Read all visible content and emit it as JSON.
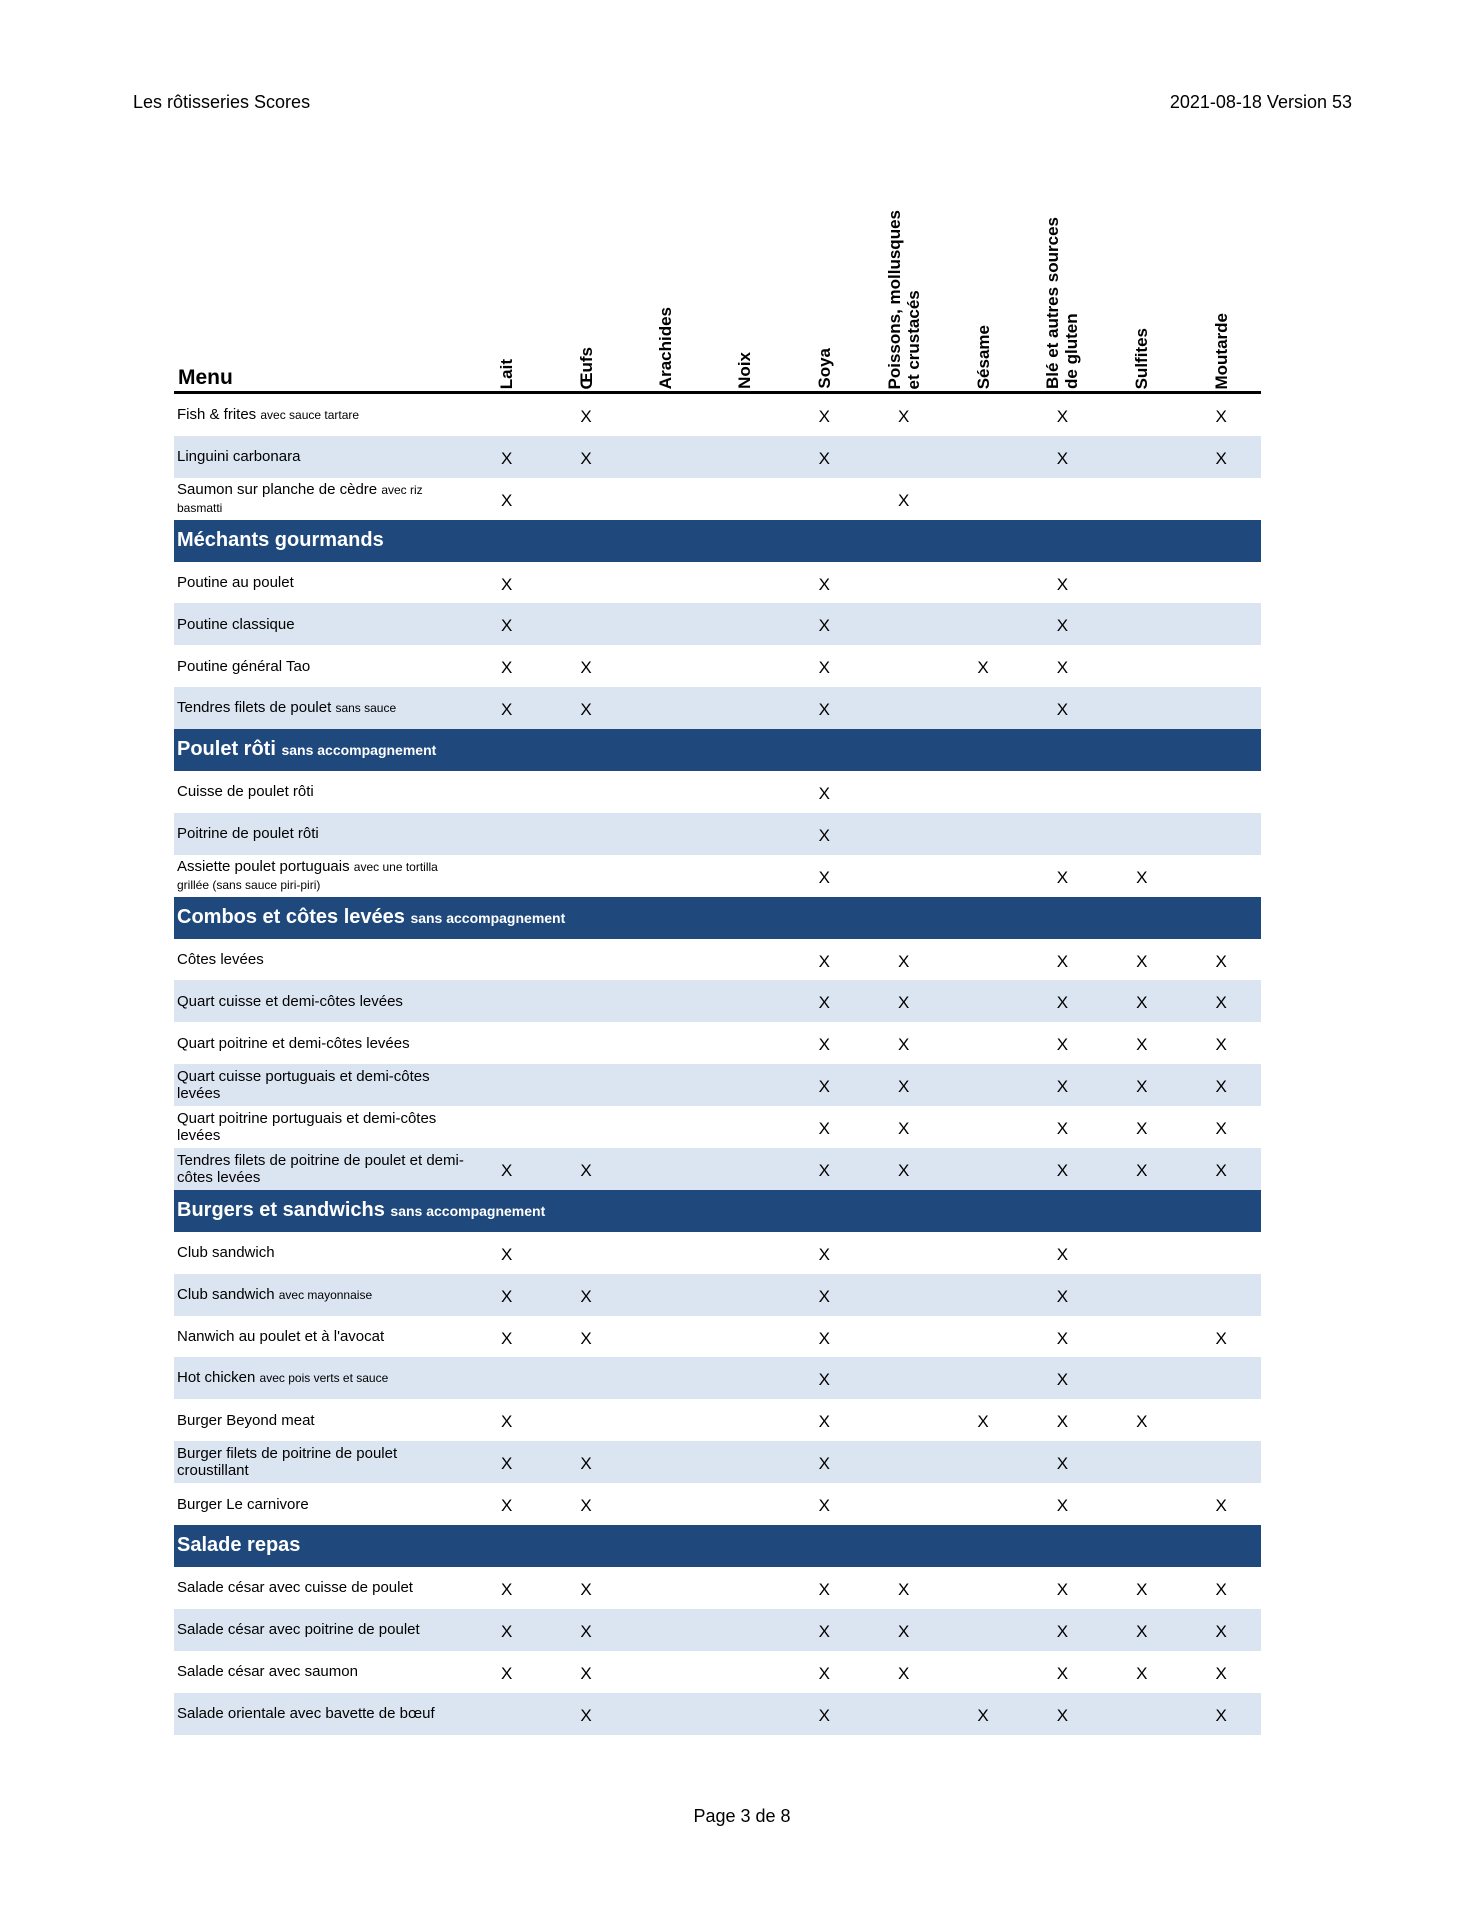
{
  "header": {
    "left": "Les rôtisseries Scores",
    "right": "2021-08-18 Version 53"
  },
  "footer": {
    "page": "Page 3 de 8"
  },
  "colors": {
    "section_bg": "#1f497d",
    "alt_row_bg": "#dbe5f1"
  },
  "table": {
    "menu_label": "Menu",
    "columns": [
      {
        "lines": [
          "Lait"
        ]
      },
      {
        "lines": [
          "Œufs"
        ]
      },
      {
        "lines": [
          "Arachides"
        ]
      },
      {
        "lines": [
          "Noix"
        ]
      },
      {
        "lines": [
          "Soya"
        ]
      },
      {
        "lines": [
          "Poissons, mollusques",
          "et crustacés"
        ]
      },
      {
        "lines": [
          "Sésame"
        ]
      },
      {
        "lines": [
          "Blé et autres sources",
          "de gluten"
        ]
      },
      {
        "lines": [
          "Sulfites"
        ]
      },
      {
        "lines": [
          "Moutarde"
        ]
      }
    ],
    "rows": [
      {
        "name": "Fish & frites",
        "note": "avec sauce tartare",
        "marks": [
          "",
          "X",
          "",
          "",
          "X",
          "X",
          "",
          "X",
          "",
          "X"
        ]
      },
      {
        "name": "Linguini carbonara",
        "note": "",
        "marks": [
          "X",
          "X",
          "",
          "",
          "X",
          "",
          "",
          "X",
          "",
          "X"
        ]
      },
      {
        "name": "Saumon sur planche de cèdre",
        "note": "avec riz basmatti",
        "marks": [
          "X",
          "",
          "",
          "",
          "",
          "X",
          "",
          "",
          "",
          ""
        ]
      },
      {
        "section": true,
        "name": "Méchants gourmands",
        "note": ""
      },
      {
        "name": "Poutine au poulet",
        "note": "",
        "marks": [
          "X",
          "",
          "",
          "",
          "X",
          "",
          "",
          "X",
          "",
          ""
        ]
      },
      {
        "name": "Poutine classique",
        "note": "",
        "marks": [
          "X",
          "",
          "",
          "",
          "X",
          "",
          "",
          "X",
          "",
          ""
        ]
      },
      {
        "name": "Poutine général Tao",
        "note": "",
        "marks": [
          "X",
          "X",
          "",
          "",
          "X",
          "",
          "X",
          "X",
          "",
          ""
        ]
      },
      {
        "name": "Tendres filets de poulet",
        "note": "sans sauce",
        "marks": [
          "X",
          "X",
          "",
          "",
          "X",
          "",
          "",
          "X",
          "",
          ""
        ]
      },
      {
        "section": true,
        "name": "Poulet rôti",
        "note": "sans accompagnement"
      },
      {
        "name": "Cuisse de poulet rôti",
        "note": "",
        "marks": [
          "",
          "",
          "",
          "",
          "X",
          "",
          "",
          "",
          "",
          ""
        ]
      },
      {
        "name": "Poitrine de poulet rôti",
        "note": "",
        "marks": [
          "",
          "",
          "",
          "",
          "X",
          "",
          "",
          "",
          "",
          ""
        ]
      },
      {
        "name": "Assiette poulet portuguais",
        "note": "avec une tortilla grillée (sans sauce piri-piri)",
        "marks": [
          "",
          "",
          "",
          "",
          "X",
          "",
          "",
          "X",
          "X",
          ""
        ]
      },
      {
        "section": true,
        "name": "Combos et côtes levées",
        "note": "sans accompagnement"
      },
      {
        "name": "Côtes levées",
        "note": "",
        "marks": [
          "",
          "",
          "",
          "",
          "X",
          "X",
          "",
          "X",
          "X",
          "X"
        ]
      },
      {
        "name": "Quart cuisse et demi-côtes levées",
        "note": "",
        "marks": [
          "",
          "",
          "",
          "",
          "X",
          "X",
          "",
          "X",
          "X",
          "X"
        ]
      },
      {
        "name": "Quart poitrine et demi-côtes levées",
        "note": "",
        "marks": [
          "",
          "",
          "",
          "",
          "X",
          "X",
          "",
          "X",
          "X",
          "X"
        ]
      },
      {
        "name": "Quart cuisse portuguais et demi-côtes levées",
        "note": "",
        "marks": [
          "",
          "",
          "",
          "",
          "X",
          "X",
          "",
          "X",
          "X",
          "X"
        ]
      },
      {
        "name": "Quart poitrine portuguais et demi-côtes levées",
        "note": "",
        "marks": [
          "",
          "",
          "",
          "",
          "X",
          "X",
          "",
          "X",
          "X",
          "X"
        ]
      },
      {
        "name": "Tendres filets de poitrine de poulet et demi-côtes levées",
        "note": "",
        "marks": [
          "X",
          "X",
          "",
          "",
          "X",
          "X",
          "",
          "X",
          "X",
          "X"
        ]
      },
      {
        "section": true,
        "name": "Burgers et sandwichs",
        "note": "sans accompagnement"
      },
      {
        "name": "Club sandwich",
        "note": "",
        "marks": [
          "X",
          "",
          "",
          "",
          "X",
          "",
          "",
          "X",
          "",
          ""
        ]
      },
      {
        "name": "Club sandwich",
        "note": "avec mayonnaise",
        "marks": [
          "X",
          "X",
          "",
          "",
          "X",
          "",
          "",
          "X",
          "",
          ""
        ]
      },
      {
        "name": "Nanwich au poulet et à l'avocat",
        "note": "",
        "marks": [
          "X",
          "X",
          "",
          "",
          "X",
          "",
          "",
          "X",
          "",
          "X"
        ]
      },
      {
        "name": "Hot chicken",
        "note": "avec pois verts et sauce",
        "marks": [
          "",
          "",
          "",
          "",
          "X",
          "",
          "",
          "X",
          "",
          ""
        ]
      },
      {
        "name": "Burger Beyond meat",
        "note": "",
        "marks": [
          "X",
          "",
          "",
          "",
          "X",
          "",
          "X",
          "X",
          "X",
          ""
        ]
      },
      {
        "name": "Burger filets de poitrine de poulet croustillant",
        "note": "",
        "marks": [
          "X",
          "X",
          "",
          "",
          "X",
          "",
          "",
          "X",
          "",
          ""
        ]
      },
      {
        "name": "Burger Le carnivore",
        "note": "",
        "marks": [
          "X",
          "X",
          "",
          "",
          "X",
          "",
          "",
          "X",
          "",
          "X"
        ]
      },
      {
        "section": true,
        "name": "Salade repas",
        "note": ""
      },
      {
        "name": "Salade césar avec cuisse de poulet",
        "note": "",
        "marks": [
          "X",
          "X",
          "",
          "",
          "X",
          "X",
          "",
          "X",
          "X",
          "X"
        ]
      },
      {
        "name": "Salade césar avec poitrine de poulet",
        "note": "",
        "marks": [
          "X",
          "X",
          "",
          "",
          "X",
          "X",
          "",
          "X",
          "X",
          "X"
        ]
      },
      {
        "name": "Salade césar avec saumon",
        "note": "",
        "marks": [
          "X",
          "X",
          "",
          "",
          "X",
          "X",
          "",
          "X",
          "X",
          "X"
        ]
      },
      {
        "name": "Salade orientale avec bavette de bœuf",
        "note": "",
        "marks": [
          "",
          "X",
          "",
          "",
          "X",
          "",
          "X",
          "X",
          "",
          "X"
        ]
      }
    ]
  }
}
